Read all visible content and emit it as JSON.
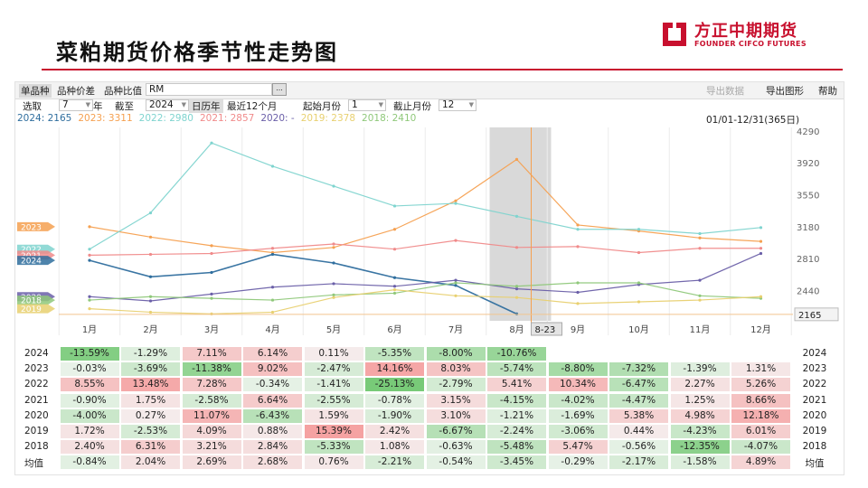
{
  "page": {
    "title": "菜粕期货价格季节性走势图",
    "logo_cn": "方正中期期货",
    "logo_en": "FOUNDER CIFCO FUTURES"
  },
  "toolbar": {
    "single": "单品种",
    "spread": "品种价差",
    "ratio": "品种比值",
    "symbol": "RM",
    "browse": "...",
    "export_data": "导出数据",
    "export_chart": "导出图形",
    "help": "帮助"
  },
  "options": {
    "select_label": "选取",
    "years_value": "7",
    "years_unit": "年",
    "until_label": "截至",
    "until_value": "2024",
    "calendar_year": "日历年",
    "recent12": "最近12个月",
    "start_month_label": "起始月份",
    "start_month": "1",
    "end_month_label": "截止月份",
    "end_month": "12"
  },
  "legend": [
    {
      "text": "2024: 2165",
      "color": "#2f6e9e"
    },
    {
      "text": "2023: 3311",
      "color": "#f5a050"
    },
    {
      "text": "2022: 2980",
      "color": "#7fd4cf"
    },
    {
      "text": "2021: 2857",
      "color": "#f08a8a"
    },
    {
      "text": "2020: -",
      "color": "#6a5fa8"
    },
    {
      "text": "2019: 2378",
      "color": "#e8d070"
    },
    {
      "text": "2018: 2410",
      "color": "#8fc87a"
    }
  ],
  "range_text": "01/01-12/31(365日)",
  "chart_data": {
    "type": "line",
    "x_ticks": [
      "1月",
      "2月",
      "3月",
      "4月",
      "5月",
      "6月",
      "7月",
      "8月",
      "9月",
      "10月",
      "11月",
      "12月"
    ],
    "y_ticks": [
      4290,
      3920,
      3550,
      3180,
      2810,
      2440
    ],
    "ylim": [
      2090,
      4330
    ],
    "highlight_label": "8-23",
    "current_value_label": "2165",
    "series": [
      {
        "name": "2023",
        "color": "#f5a050",
        "left_tag": "2023",
        "values": [
          3180,
          3060,
          2960,
          2880,
          2940,
          3150,
          3480,
          3960,
          3200,
          3130,
          3050,
          3010
        ]
      },
      {
        "name": "2022",
        "color": "#7fd4cf",
        "left_tag": "2022",
        "values": [
          2920,
          3340,
          4150,
          3880,
          3650,
          3420,
          3450,
          3300,
          3150,
          3150,
          3100,
          3170
        ]
      },
      {
        "name": "2021",
        "color": "#f08a8a",
        "left_tag": "2021",
        "values": [
          2850,
          2860,
          2870,
          2930,
          2980,
          2920,
          3020,
          2940,
          2950,
          2880,
          2930,
          2930
        ]
      },
      {
        "name": "2024",
        "color": "#2f6e9e",
        "left_tag": "2024",
        "values": [
          2790,
          2600,
          2650,
          2860,
          2760,
          2590,
          2500,
          2170,
          null,
          null,
          null,
          null
        ]
      },
      {
        "name": "2020",
        "color": "#6a5fa8",
        "left_tag": "2020",
        "values": [
          2370,
          2320,
          2400,
          2480,
          2520,
          2490,
          2560,
          2460,
          2420,
          2510,
          2560,
          2870
        ]
      },
      {
        "name": "2018",
        "color": "#8fc87a",
        "left_tag": "2018",
        "values": [
          2330,
          2370,
          2350,
          2330,
          2390,
          2410,
          2530,
          2490,
          2530,
          2530,
          2380,
          2350
        ]
      },
      {
        "name": "2019",
        "color": "#e8d070",
        "left_tag": "2019",
        "values": [
          2230,
          2190,
          2170,
          2190,
          2360,
          2450,
          2380,
          2360,
          2290,
          2310,
          2330,
          2370
        ]
      }
    ]
  },
  "table": {
    "rows": [
      {
        "year": "2024",
        "cells": [
          "-13.59%",
          "-1.29%",
          "7.11%",
          "6.14%",
          "0.11%",
          "-5.35%",
          "-8.00%",
          "-10.76%",
          "",
          "",
          "",
          ""
        ]
      },
      {
        "year": "2023",
        "cells": [
          "-0.03%",
          "-3.69%",
          "-11.38%",
          "9.02%",
          "-2.47%",
          "14.16%",
          "8.03%",
          "-5.74%",
          "-8.80%",
          "-7.32%",
          "-1.39%",
          "1.31%"
        ]
      },
      {
        "year": "2022",
        "cells": [
          "8.55%",
          "13.48%",
          "7.28%",
          "-0.34%",
          "-1.41%",
          "-25.13%",
          "-2.79%",
          "5.41%",
          "10.34%",
          "-6.47%",
          "2.27%",
          "5.26%"
        ]
      },
      {
        "year": "2021",
        "cells": [
          "-0.90%",
          "1.75%",
          "-2.58%",
          "6.64%",
          "-2.55%",
          "-0.78%",
          "3.15%",
          "-4.15%",
          "-4.02%",
          "-4.47%",
          "1.25%",
          "8.66%"
        ]
      },
      {
        "year": "2020",
        "cells": [
          "-4.00%",
          "0.27%",
          "11.07%",
          "-6.43%",
          "1.59%",
          "-1.90%",
          "3.10%",
          "-1.21%",
          "-1.69%",
          "5.38%",
          "4.98%",
          "12.18%"
        ]
      },
      {
        "year": "2019",
        "cells": [
          "1.72%",
          "-2.53%",
          "4.09%",
          "0.88%",
          "15.39%",
          "2.42%",
          "-6.67%",
          "-2.24%",
          "-3.06%",
          "0.44%",
          "-4.23%",
          "6.01%"
        ]
      },
      {
        "year": "2018",
        "cells": [
          "2.40%",
          "6.31%",
          "3.21%",
          "2.84%",
          "-5.33%",
          "1.08%",
          "-0.63%",
          "-5.48%",
          "5.47%",
          "-0.56%",
          "-12.35%",
          "-4.07%"
        ]
      },
      {
        "year": "均值",
        "cells": [
          "-0.84%",
          "2.04%",
          "2.69%",
          "2.68%",
          "0.76%",
          "-2.21%",
          "-0.54%",
          "-3.45%",
          "-0.29%",
          "-2.17%",
          "-1.58%",
          "4.89%"
        ]
      }
    ]
  }
}
